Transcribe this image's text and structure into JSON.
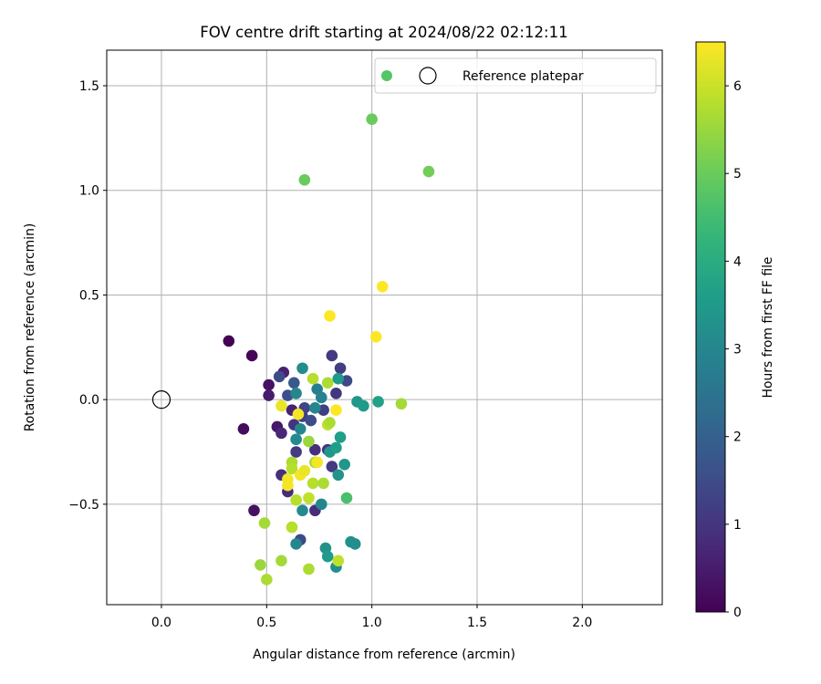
{
  "chart_data": {
    "type": "scatter",
    "title": "FOV centre drift starting at 2024/08/22 02:12:11",
    "xlabel": "Angular distance from reference (arcmin)",
    "ylabel": "Rotation from reference (arcmin)",
    "xlim": [
      -0.26,
      2.38
    ],
    "ylim": [
      -0.98,
      1.67
    ],
    "xticks": [
      0.0,
      0.5,
      1.0,
      1.5,
      2.0
    ],
    "xtick_labels": [
      "0.0",
      "0.5",
      "1.0",
      "1.5",
      "2.0"
    ],
    "yticks": [
      -0.5,
      0.0,
      0.5,
      1.0,
      1.5
    ],
    "ytick_labels": [
      "−0.5",
      "0.0",
      "0.5",
      "1.0",
      "1.5"
    ],
    "grid": true,
    "legend_position": "top-right",
    "legend": [
      {
        "label": "",
        "marker": "filled-circle",
        "color": "#55c667"
      },
      {
        "label": "Reference platepar",
        "marker": "open-circle",
        "color": "#000000"
      }
    ],
    "reference_point": {
      "x": 0.0,
      "y": 0.0
    },
    "colorbar": {
      "label": "Hours from first FF file",
      "min": 0,
      "max": 6.5,
      "ticks": [
        0,
        1,
        2,
        3,
        4,
        5,
        6
      ],
      "tick_labels": [
        "0",
        "1",
        "2",
        "3",
        "4",
        "5",
        "6"
      ],
      "colormap": "viridis"
    },
    "points": [
      {
        "x": 0.32,
        "y": 0.28,
        "t": 0.0
      },
      {
        "x": 0.43,
        "y": 0.21,
        "t": 0.1
      },
      {
        "x": 0.39,
        "y": -0.14,
        "t": 0.2
      },
      {
        "x": 0.44,
        "y": -0.53,
        "t": 0.3
      },
      {
        "x": 0.51,
        "y": 0.07,
        "t": 0.3
      },
      {
        "x": 0.51,
        "y": 0.02,
        "t": 0.5
      },
      {
        "x": 0.58,
        "y": 0.13,
        "t": 0.6
      },
      {
        "x": 0.55,
        "y": -0.13,
        "t": 0.4
      },
      {
        "x": 0.57,
        "y": -0.16,
        "t": 0.7
      },
      {
        "x": 0.6,
        "y": -0.44,
        "t": 0.8
      },
      {
        "x": 0.57,
        "y": -0.36,
        "t": 0.9
      },
      {
        "x": 0.62,
        "y": -0.05,
        "t": 0.6
      },
      {
        "x": 0.63,
        "y": -0.12,
        "t": 1.0
      },
      {
        "x": 0.64,
        "y": -0.25,
        "t": 1.1
      },
      {
        "x": 0.56,
        "y": 0.11,
        "t": 1.5
      },
      {
        "x": 0.6,
        "y": 0.02,
        "t": 1.6
      },
      {
        "x": 0.63,
        "y": 0.08,
        "t": 1.8
      },
      {
        "x": 0.67,
        "y": -0.08,
        "t": 1.2
      },
      {
        "x": 0.68,
        "y": -0.04,
        "t": 1.3
      },
      {
        "x": 0.71,
        "y": -0.1,
        "t": 1.5
      },
      {
        "x": 0.73,
        "y": -0.24,
        "t": 0.9
      },
      {
        "x": 0.73,
        "y": -0.53,
        "t": 0.8
      },
      {
        "x": 0.77,
        "y": -0.05,
        "t": 1.2
      },
      {
        "x": 0.79,
        "y": -0.24,
        "t": 1.0
      },
      {
        "x": 0.81,
        "y": 0.21,
        "t": 1.1
      },
      {
        "x": 0.85,
        "y": 0.15,
        "t": 1.2
      },
      {
        "x": 0.83,
        "y": 0.03,
        "t": 1.0
      },
      {
        "x": 0.81,
        "y": -0.32,
        "t": 1.1
      },
      {
        "x": 0.88,
        "y": 0.09,
        "t": 1.4
      },
      {
        "x": 0.66,
        "y": -0.67,
        "t": 1.4
      },
      {
        "x": 0.67,
        "y": 0.15,
        "t": 3.2
      },
      {
        "x": 0.64,
        "y": 0.03,
        "t": 3.0
      },
      {
        "x": 0.64,
        "y": -0.19,
        "t": 3.1
      },
      {
        "x": 0.66,
        "y": -0.14,
        "t": 3.0
      },
      {
        "x": 0.64,
        "y": -0.69,
        "t": 3.0
      },
      {
        "x": 0.67,
        "y": -0.53,
        "t": 3.1
      },
      {
        "x": 0.74,
        "y": 0.05,
        "t": 2.8
      },
      {
        "x": 0.76,
        "y": 0.01,
        "t": 2.9
      },
      {
        "x": 0.73,
        "y": -0.04,
        "t": 3.0
      },
      {
        "x": 0.76,
        "y": -0.5,
        "t": 3.0
      },
      {
        "x": 0.78,
        "y": -0.71,
        "t": 3.3
      },
      {
        "x": 0.79,
        "y": -0.75,
        "t": 3.5
      },
      {
        "x": 0.8,
        "y": -0.25,
        "t": 3.4
      },
      {
        "x": 0.83,
        "y": -0.23,
        "t": 3.6
      },
      {
        "x": 0.84,
        "y": 0.1,
        "t": 3.5
      },
      {
        "x": 0.85,
        "y": -0.18,
        "t": 3.6
      },
      {
        "x": 0.84,
        "y": -0.36,
        "t": 3.3
      },
      {
        "x": 0.87,
        "y": -0.31,
        "t": 3.4
      },
      {
        "x": 0.83,
        "y": -0.8,
        "t": 3.2
      },
      {
        "x": 0.9,
        "y": -0.68,
        "t": 3.3
      },
      {
        "x": 0.92,
        "y": -0.69,
        "t": 3.2
      },
      {
        "x": 0.93,
        "y": -0.01,
        "t": 3.4
      },
      {
        "x": 0.96,
        "y": -0.03,
        "t": 3.5
      },
      {
        "x": 1.03,
        "y": -0.01,
        "t": 3.7
      },
      {
        "x": 0.88,
        "y": -0.47,
        "t": 4.6
      },
      {
        "x": 0.68,
        "y": 1.05,
        "t": 5.0
      },
      {
        "x": 1.0,
        "y": 1.34,
        "t": 5.0
      },
      {
        "x": 1.27,
        "y": 1.09,
        "t": 5.1
      },
      {
        "x": 0.7,
        "y": -0.2,
        "t": 5.5
      },
      {
        "x": 0.73,
        "y": -0.3,
        "t": 5.6
      },
      {
        "x": 0.79,
        "y": 0.08,
        "t": 5.7
      },
      {
        "x": 0.72,
        "y": 0.1,
        "t": 5.8
      },
      {
        "x": 0.62,
        "y": -0.3,
        "t": 5.7
      },
      {
        "x": 0.62,
        "y": -0.33,
        "t": 5.8
      },
      {
        "x": 0.64,
        "y": -0.48,
        "t": 5.8
      },
      {
        "x": 0.7,
        "y": -0.47,
        "t": 5.9
      },
      {
        "x": 0.72,
        "y": -0.4,
        "t": 5.8
      },
      {
        "x": 0.77,
        "y": -0.4,
        "t": 5.7
      },
      {
        "x": 0.79,
        "y": -0.12,
        "t": 5.9
      },
      {
        "x": 0.8,
        "y": -0.11,
        "t": 5.7
      },
      {
        "x": 0.62,
        "y": -0.61,
        "t": 5.8
      },
      {
        "x": 0.49,
        "y": -0.59,
        "t": 5.6
      },
      {
        "x": 0.47,
        "y": -0.79,
        "t": 5.5
      },
      {
        "x": 0.5,
        "y": -0.86,
        "t": 5.7
      },
      {
        "x": 0.57,
        "y": -0.77,
        "t": 5.6
      },
      {
        "x": 0.7,
        "y": -0.81,
        "t": 5.7
      },
      {
        "x": 0.84,
        "y": -0.77,
        "t": 5.9
      },
      {
        "x": 1.14,
        "y": -0.02,
        "t": 5.6
      },
      {
        "x": 0.57,
        "y": -0.03,
        "t": 6.3
      },
      {
        "x": 0.6,
        "y": -0.38,
        "t": 6.4
      },
      {
        "x": 0.6,
        "y": -0.41,
        "t": 6.4
      },
      {
        "x": 0.66,
        "y": -0.36,
        "t": 6.4
      },
      {
        "x": 0.68,
        "y": -0.34,
        "t": 6.3
      },
      {
        "x": 0.65,
        "y": -0.07,
        "t": 6.4
      },
      {
        "x": 0.74,
        "y": -0.3,
        "t": 6.4
      },
      {
        "x": 0.83,
        "y": -0.05,
        "t": 6.5
      },
      {
        "x": 0.8,
        "y": 0.4,
        "t": 6.5
      },
      {
        "x": 1.02,
        "y": 0.3,
        "t": 6.5
      },
      {
        "x": 1.05,
        "y": 0.54,
        "t": 6.5
      }
    ]
  }
}
